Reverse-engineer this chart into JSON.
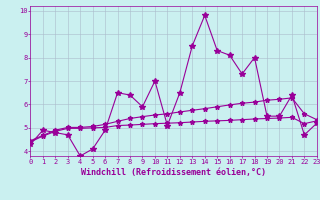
{
  "title": "",
  "xlabel": "Windchill (Refroidissement éolien,°C)",
  "x": [
    0,
    1,
    2,
    3,
    4,
    5,
    6,
    7,
    8,
    9,
    10,
    11,
    12,
    13,
    14,
    15,
    16,
    17,
    18,
    19,
    20,
    21,
    22,
    23
  ],
  "y_data": [
    4.3,
    4.9,
    4.8,
    4.7,
    3.8,
    4.1,
    4.9,
    6.5,
    6.4,
    5.9,
    7.0,
    5.1,
    6.5,
    8.5,
    9.8,
    8.3,
    8.1,
    7.3,
    8.0,
    5.5,
    5.5,
    6.4,
    4.7,
    5.2
  ],
  "y_trend1": [
    4.4,
    4.65,
    4.85,
    4.98,
    4.98,
    5.0,
    5.02,
    5.1,
    5.12,
    5.15,
    5.18,
    5.2,
    5.22,
    5.25,
    5.28,
    5.3,
    5.32,
    5.35,
    5.38,
    5.4,
    5.42,
    5.45,
    5.18,
    5.3
  ],
  "y_trend2": [
    4.45,
    4.68,
    4.9,
    5.02,
    5.02,
    5.06,
    5.15,
    5.28,
    5.4,
    5.48,
    5.55,
    5.6,
    5.68,
    5.75,
    5.82,
    5.9,
    5.98,
    6.05,
    6.1,
    6.18,
    6.22,
    6.28,
    5.6,
    5.35
  ],
  "bg_color": "#caf0f0",
  "line_color": "#990099",
  "grid_color": "#aabbcc",
  "xlim": [
    0,
    23
  ],
  "ylim": [
    3.8,
    10.2
  ],
  "yticks": [
    4,
    5,
    6,
    7,
    8,
    9,
    10
  ],
  "xticks": [
    0,
    1,
    2,
    3,
    4,
    5,
    6,
    7,
    8,
    9,
    10,
    11,
    12,
    13,
    14,
    15,
    16,
    17,
    18,
    19,
    20,
    21,
    22,
    23
  ],
  "marker": "*",
  "markersize": 4,
  "linewidth": 0.8,
  "tick_fontsize": 5,
  "xlabel_fontsize": 6
}
